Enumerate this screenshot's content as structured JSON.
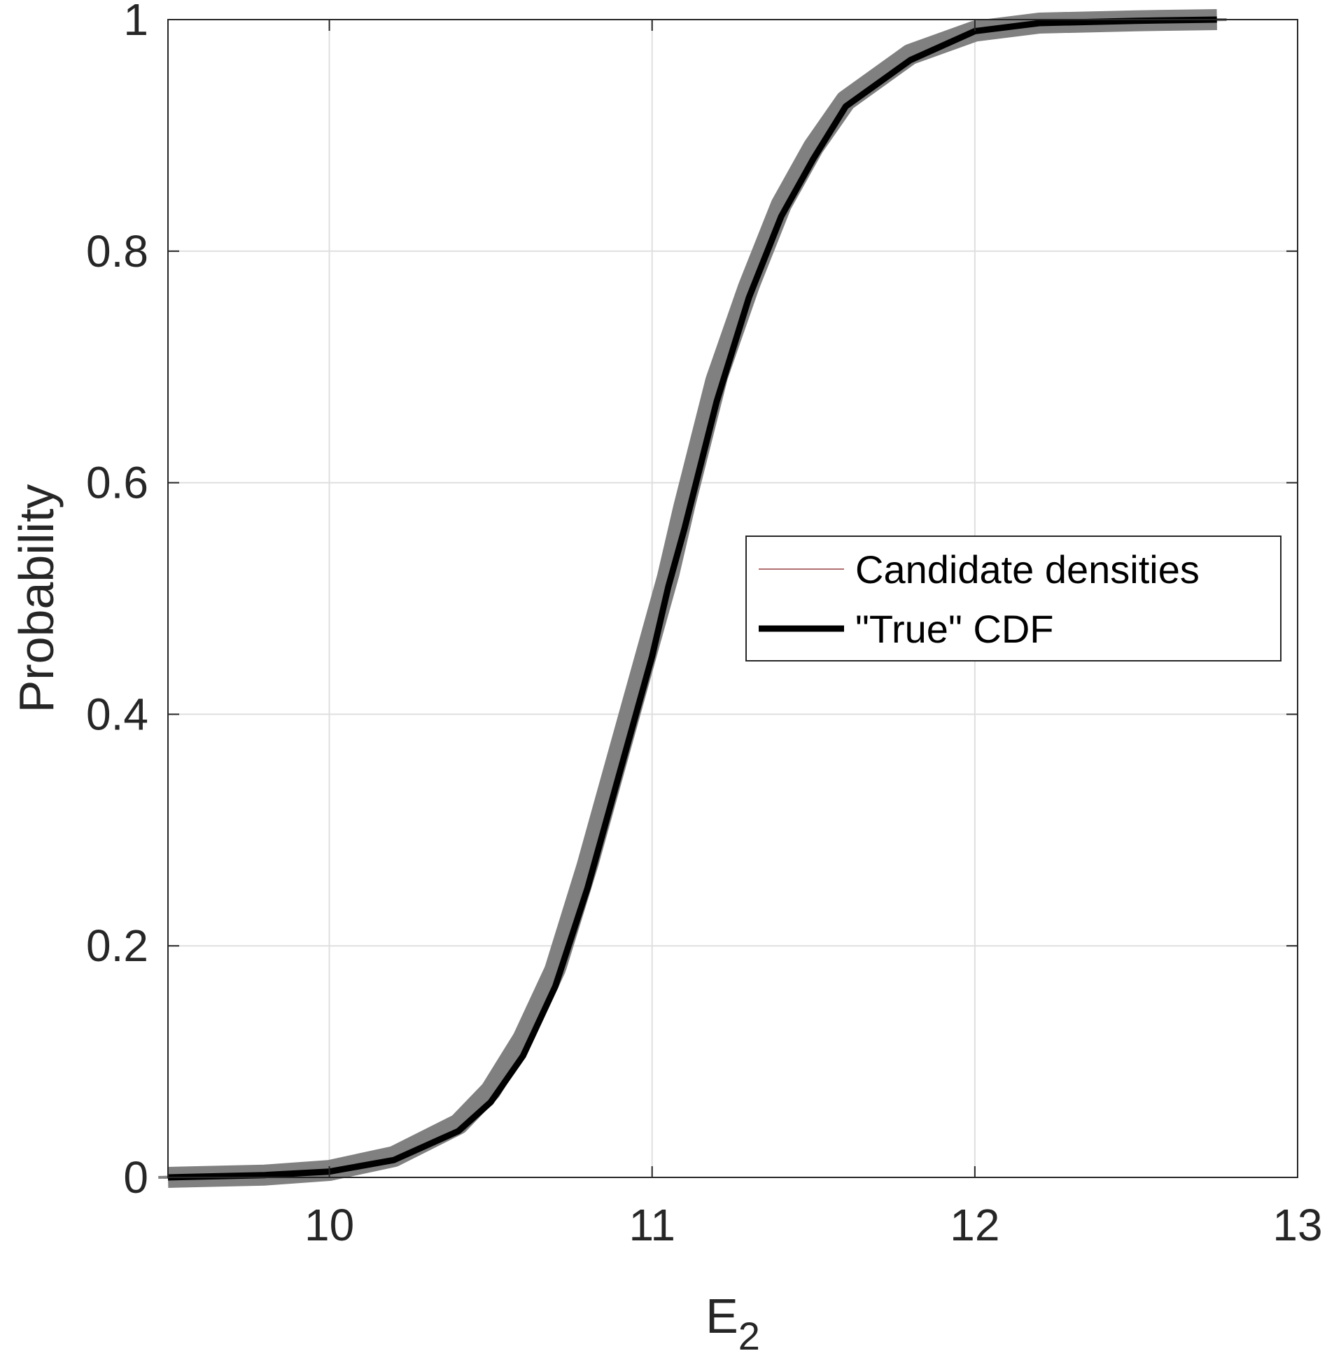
{
  "chart_data": {
    "type": "line",
    "xlabel": "E",
    "xlabel_subscript": "2",
    "ylabel": "Probability",
    "xlim": [
      9.5,
      13
    ],
    "ylim": [
      0,
      1
    ],
    "x_ticks": [
      10,
      11,
      12,
      13
    ],
    "y_ticks": [
      0,
      0.2,
      0.4,
      0.6,
      0.8,
      1
    ],
    "x_tick_labels": [
      "10",
      "11",
      "12",
      "13"
    ],
    "y_tick_labels": [
      "0",
      "0.2",
      "0.4",
      "0.6",
      "0.8",
      "1"
    ],
    "grid": true,
    "legend_position": "right-middle",
    "series": [
      {
        "name": "Candidate densities",
        "color": "#808080",
        "band_halfwidth": 0.03,
        "x": [
          9.5,
          9.8,
          10.0,
          10.2,
          10.4,
          10.5,
          10.6,
          10.7,
          10.8,
          10.9,
          11.0,
          11.05,
          11.1,
          11.2,
          11.3,
          11.4,
          11.5,
          11.6,
          11.8,
          12.0,
          12.2,
          12.5,
          12.75
        ],
        "y": [
          0.0,
          0.002,
          0.006,
          0.018,
          0.046,
          0.075,
          0.12,
          0.18,
          0.27,
          0.37,
          0.47,
          0.52,
          0.58,
          0.69,
          0.77,
          0.84,
          0.89,
          0.93,
          0.97,
          0.99,
          0.997,
          0.999,
          1.0
        ]
      },
      {
        "name": "\"True\" CDF",
        "color": "#000000",
        "x": [
          9.5,
          9.8,
          10.0,
          10.2,
          10.4,
          10.5,
          10.6,
          10.7,
          10.8,
          10.9,
          11.0,
          11.05,
          11.1,
          11.2,
          11.3,
          11.4,
          11.5,
          11.6,
          11.8,
          12.0,
          12.2,
          12.5,
          12.75
        ],
        "y": [
          0.0,
          0.002,
          0.005,
          0.015,
          0.04,
          0.065,
          0.105,
          0.165,
          0.25,
          0.35,
          0.45,
          0.51,
          0.56,
          0.67,
          0.76,
          0.83,
          0.88,
          0.925,
          0.965,
          0.99,
          0.997,
          0.999,
          1.0
        ]
      }
    ]
  }
}
